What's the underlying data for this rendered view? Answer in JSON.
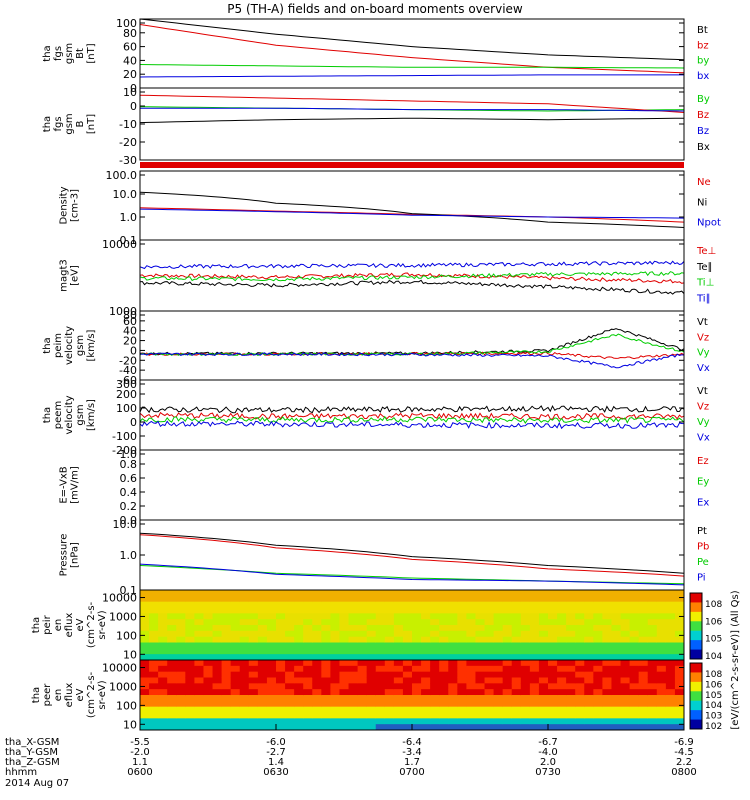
{
  "title": "P5 (TH-A) fields and on-board moments overview",
  "colors": {
    "black": "#000000",
    "red": "#e00000",
    "green": "#00cc00",
    "blue": "#0000e0"
  },
  "chart_data": [
    {
      "type": "line",
      "panel": "fgs_gsm_btot",
      "ylabel": [
        "tha",
        "fgs",
        "gsm",
        "Bt",
        "[nT]"
      ],
      "ylim": [
        0,
        100
      ],
      "yticks": [
        "100",
        "80",
        "60",
        "40",
        "20",
        "0"
      ],
      "x": [
        0,
        30,
        60,
        90,
        120
      ],
      "series": [
        {
          "name": "Bt",
          "color": "#000000",
          "values": [
            100,
            78,
            60,
            48,
            41
          ]
        },
        {
          "name": "bz",
          "color": "#e00000",
          "values": [
            92,
            62,
            44,
            30,
            22
          ]
        },
        {
          "name": "by",
          "color": "#00cc00",
          "values": [
            34,
            32,
            30,
            30,
            29
          ]
        },
        {
          "name": "bx",
          "color": "#0000e0",
          "values": [
            16,
            17,
            18,
            19,
            19
          ]
        }
      ]
    },
    {
      "type": "line",
      "panel": "fgs_gsm",
      "ylabel": [
        "tha",
        "fgs",
        "gsm",
        "B",
        "[nT]"
      ],
      "ylim": [
        -35,
        15
      ],
      "yticks": [
        "10",
        "0",
        "-10",
        "-20",
        "-30"
      ],
      "x": [
        0,
        30,
        60,
        90,
        120
      ],
      "series": [
        {
          "name": "By",
          "color": "#00cc00",
          "values": [
            2,
            1,
            0,
            -1,
            0
          ]
        },
        {
          "name": "Bz",
          "color": "#e00000",
          "values": [
            10,
            8,
            6,
            4,
            -2
          ]
        },
        {
          "name": "Bz",
          "color": "#0000e0",
          "values": [
            1,
            1,
            0,
            0,
            -1
          ]
        },
        {
          "name": "Bx",
          "color": "#000000",
          "values": [
            -9,
            -7,
            -6,
            -7,
            -6
          ]
        }
      ]
    },
    {
      "type": "line",
      "panel": "density",
      "ylabel": [
        "Density",
        "[cm-3]"
      ],
      "scale": "log",
      "ylim": [
        0.1,
        100
      ],
      "yticks": [
        "100.0",
        "10.0",
        "1.0",
        "0.1"
      ],
      "x": [
        0,
        30,
        60,
        90,
        120
      ],
      "series": [
        {
          "name": "Ne",
          "color": "#e00000",
          "values": [
            2.5,
            1.8,
            1.3,
            1.0,
            0.6
          ]
        },
        {
          "name": "Ni",
          "color": "#000000",
          "values": [
            12,
            4,
            1.4,
            0.6,
            0.35
          ]
        },
        {
          "name": "Npot",
          "color": "#0000e0",
          "values": [
            2.2,
            1.7,
            1.2,
            1.0,
            0.9
          ]
        }
      ]
    },
    {
      "type": "line",
      "panel": "temperature",
      "ylabel": [
        "magt3",
        "[eV]"
      ],
      "scale": "log",
      "ylim": [
        1000,
        10000
      ],
      "yticks": [
        "10000",
        "1000"
      ],
      "x": [
        0,
        30,
        60,
        90,
        120
      ],
      "series": [
        {
          "name": "Te⊥",
          "color": "#e00000",
          "values": [
            3200,
            3000,
            3300,
            2900,
            2600
          ]
        },
        {
          "name": "Te∥",
          "color": "#000000",
          "values": [
            2500,
            2300,
            2600,
            2200,
            1800
          ]
        },
        {
          "name": "Ti⊥",
          "color": "#00cc00",
          "values": [
            2900,
            2800,
            3000,
            3300,
            3400
          ]
        },
        {
          "name": "Ti∥",
          "color": "#0000e0",
          "values": [
            4200,
            4300,
            4400,
            4600,
            4800
          ]
        }
      ]
    },
    {
      "type": "line",
      "panel": "peim_velocity",
      "ylabel": [
        "tha",
        "peim",
        "velocity",
        "gsm",
        "[km/s]"
      ],
      "ylim": [
        -60,
        100
      ],
      "yticks": [
        "80",
        "60",
        "40",
        "20",
        "0",
        "-20",
        "-40",
        "-60"
      ],
      "x": [
        0,
        30,
        60,
        90,
        105,
        120
      ],
      "series": [
        {
          "name": "Vt",
          "color": "#000000",
          "values": [
            1,
            2,
            2,
            8,
            60,
            10
          ]
        },
        {
          "name": "Vz",
          "color": "#e00000",
          "values": [
            0,
            0,
            1,
            2,
            -10,
            0
          ]
        },
        {
          "name": "Vy",
          "color": "#00cc00",
          "values": [
            0,
            0,
            0,
            6,
            45,
            5
          ]
        },
        {
          "name": "Vx",
          "color": "#0000e0",
          "values": [
            0,
            0,
            -1,
            -4,
            -30,
            0
          ]
        }
      ]
    },
    {
      "type": "line",
      "panel": "peem_velocity",
      "ylabel": [
        "tha",
        "peem",
        "velocity",
        "gsm",
        "[km/s]"
      ],
      "ylim": [
        -200,
        300
      ],
      "yticks": [
        "300",
        "200",
        "100",
        "0",
        "-100",
        "-200"
      ],
      "x": [
        0,
        30,
        60,
        90,
        120
      ],
      "series": [
        {
          "name": "Vt",
          "color": "#000000",
          "values": [
            90,
            85,
            90,
            95,
            90
          ]
        },
        {
          "name": "Vz",
          "color": "#e00000",
          "values": [
            50,
            40,
            45,
            40,
            40
          ]
        },
        {
          "name": "Vy",
          "color": "#00cc00",
          "values": [
            20,
            15,
            20,
            10,
            15
          ]
        },
        {
          "name": "Vx",
          "color": "#0000e0",
          "values": [
            -10,
            -15,
            -20,
            -25,
            -25
          ]
        }
      ]
    },
    {
      "type": "line",
      "panel": "efield",
      "ylabel": [
        "E=-VxB",
        "[mV/m]"
      ],
      "ylim": [
        0,
        1
      ],
      "yticks": [
        "1.0",
        "0.8",
        "0.6",
        "0.4",
        "0.2",
        "0.0"
      ],
      "series": [
        {
          "name": "Ez",
          "color": "#e00000",
          "values": []
        },
        {
          "name": "Ey",
          "color": "#00cc00",
          "values": []
        },
        {
          "name": "Ex",
          "color": "#0000e0",
          "values": []
        }
      ]
    },
    {
      "type": "line",
      "panel": "pressure",
      "ylabel": [
        "Pressure",
        "[nPa]"
      ],
      "scale": "log",
      "ylim": [
        0.1,
        10
      ],
      "yticks": [
        "10.0",
        "1.0",
        "0.1"
      ],
      "x": [
        0,
        30,
        60,
        90,
        120
      ],
      "series": [
        {
          "name": "Pt",
          "color": "#000000",
          "values": [
            4.2,
            1.9,
            0.9,
            0.5,
            0.3
          ]
        },
        {
          "name": "Pb",
          "color": "#e00000",
          "values": [
            3.8,
            1.6,
            0.75,
            0.4,
            0.25
          ]
        },
        {
          "name": "Pe",
          "color": "#00cc00",
          "values": [
            0.5,
            0.3,
            0.22,
            0.18,
            0.15
          ]
        },
        {
          "name": "Pi",
          "color": "#0000e0",
          "values": [
            0.55,
            0.28,
            0.2,
            0.18,
            0.14
          ]
        }
      ]
    },
    {
      "type": "heatmap",
      "panel": "peir_en_eflux",
      "ylabel": [
        "tha",
        "peir",
        "en",
        "eflux",
        "eV",
        "(cm^2-s-",
        "sr-eV)"
      ],
      "scale": "log",
      "ylim": [
        5,
        25000
      ],
      "yticks": [
        "10000",
        "1000",
        "100",
        "10"
      ]
    },
    {
      "type": "heatmap",
      "panel": "peer_en_eflux",
      "ylabel": [
        "tha",
        "peer",
        "en",
        "eflux",
        "eV",
        "(cm^2-s-",
        "sr-eV)"
      ],
      "scale": "log",
      "ylim": [
        5,
        25000
      ],
      "yticks": [
        "10000",
        "1000",
        "100",
        "10"
      ]
    }
  ],
  "colorbar": {
    "label": "[eV/(cm^2-s-sr-eV)] (All Qs)",
    "ticks": [
      "10^8",
      "10^6",
      "10^5",
      "10^4",
      "10^3",
      "10^2"
    ]
  },
  "xaxis": {
    "rows": [
      {
        "label": "tha_X-GSM",
        "values": [
          "-5.5",
          "-6.0",
          "-6.4",
          "-6.7",
          "-6.9"
        ]
      },
      {
        "label": "tha_Y-GSM",
        "values": [
          "-2.0",
          "-2.7",
          "-3.4",
          "-4.0",
          "-4.5"
        ]
      },
      {
        "label": "tha_Z-GSM",
        "values": [
          "1.1",
          "1.4",
          "1.7",
          "2.0",
          "2.2"
        ]
      },
      {
        "label": "hhmm",
        "values": [
          "0600",
          "0630",
          "0700",
          "0730",
          "0800"
        ]
      }
    ],
    "date": "2014 Aug 07"
  }
}
